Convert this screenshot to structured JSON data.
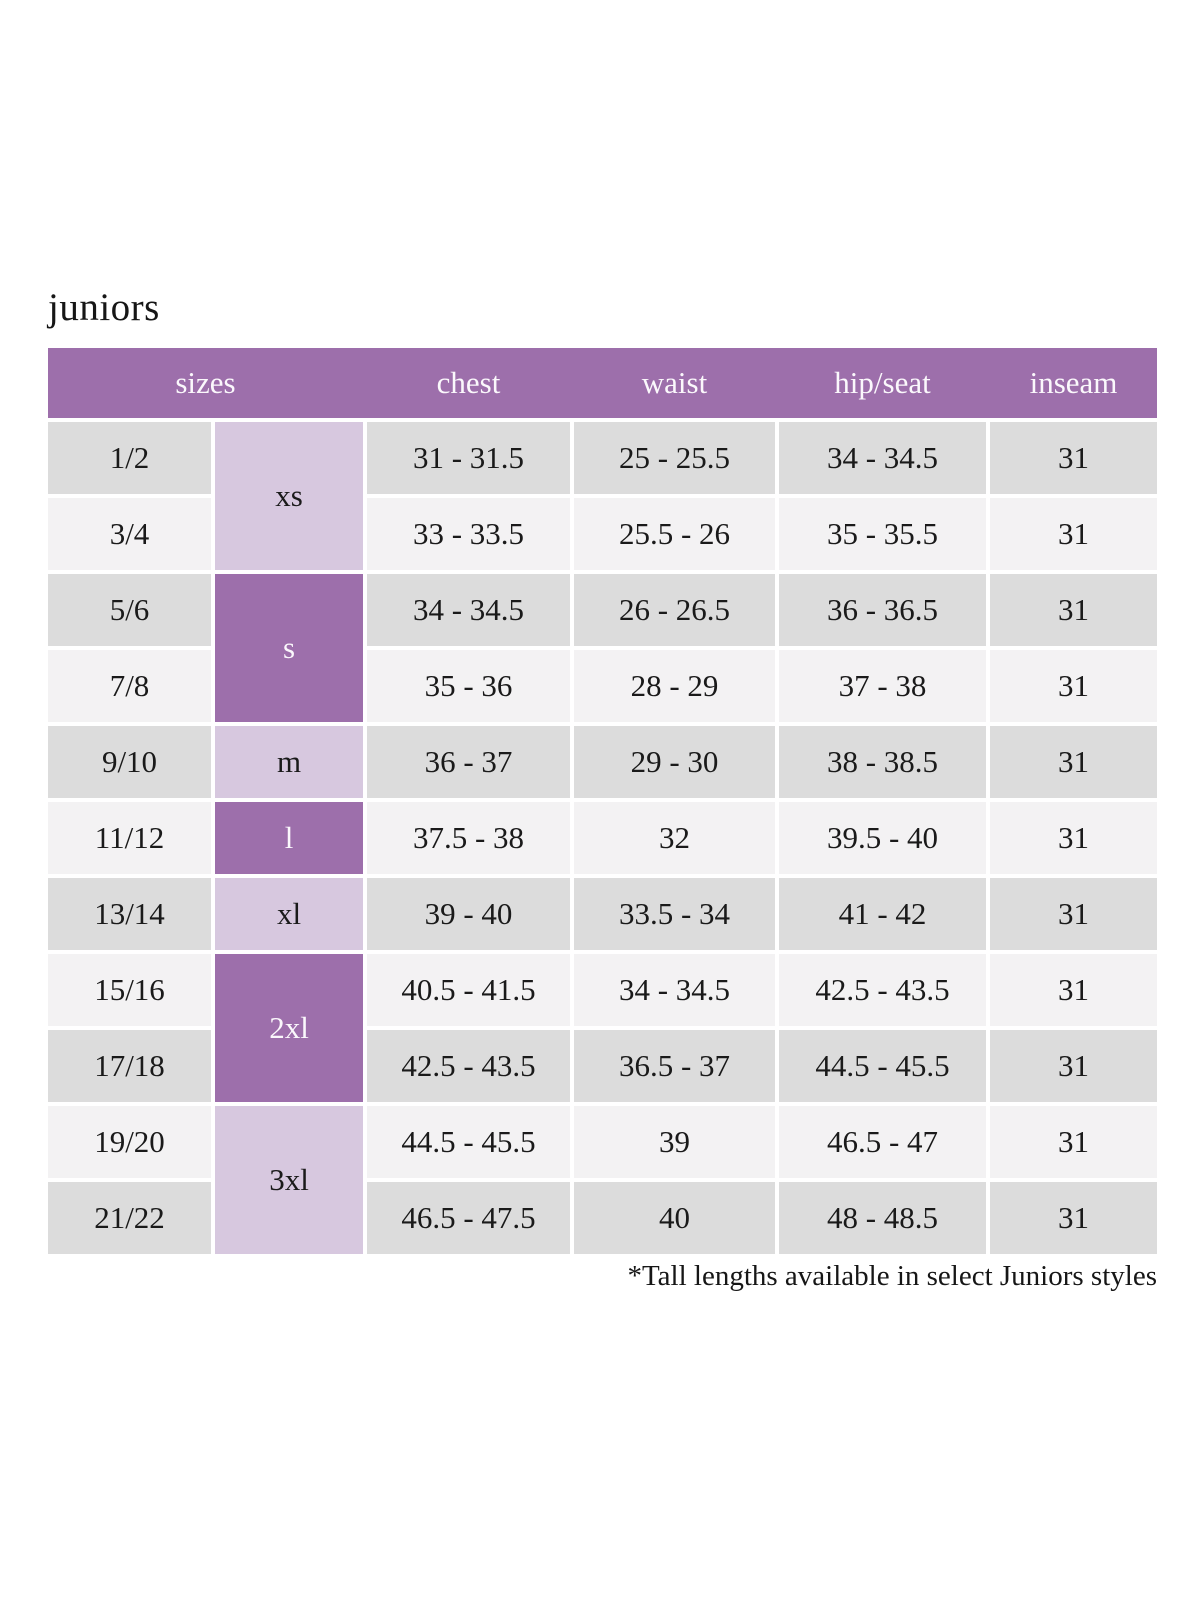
{
  "page": {
    "title": "juniors",
    "footnote": "*Tall lengths available in select Juniors styles"
  },
  "colors": {
    "header_bg": "#9d6fab",
    "header_text": "#fbf8fc",
    "size_dark_bg": "#9d6fab",
    "size_light_bg": "#d7c8df",
    "row_gray": "#dcdcdc",
    "row_light": "#f3f2f3",
    "cell_text": "#1a1a1a"
  },
  "table": {
    "columns": [
      "sizes",
      "chest",
      "waist",
      "hip/seat",
      "inseam"
    ],
    "size_groups": [
      {
        "label": "xs",
        "rows": 2,
        "variant": "light"
      },
      {
        "label": "s",
        "rows": 2,
        "variant": "dark"
      },
      {
        "label": "m",
        "rows": 1,
        "variant": "light"
      },
      {
        "label": "l",
        "rows": 1,
        "variant": "dark"
      },
      {
        "label": "xl",
        "rows": 1,
        "variant": "light"
      },
      {
        "label": "2xl",
        "rows": 2,
        "variant": "dark"
      },
      {
        "label": "3xl",
        "rows": 2,
        "variant": "light"
      }
    ],
    "rows": [
      {
        "size": "1/2",
        "chest": "31 - 31.5",
        "waist": "25 - 25.5",
        "hip_seat": "34 - 34.5",
        "inseam": "31"
      },
      {
        "size": "3/4",
        "chest": "33 - 33.5",
        "waist": "25.5 - 26",
        "hip_seat": "35 - 35.5",
        "inseam": "31"
      },
      {
        "size": "5/6",
        "chest": "34 - 34.5",
        "waist": "26 - 26.5",
        "hip_seat": "36 - 36.5",
        "inseam": "31"
      },
      {
        "size": "7/8",
        "chest": "35 - 36",
        "waist": "28 - 29",
        "hip_seat": "37 - 38",
        "inseam": "31"
      },
      {
        "size": "9/10",
        "chest": "36 - 37",
        "waist": "29 - 30",
        "hip_seat": "38 - 38.5",
        "inseam": "31"
      },
      {
        "size": "11/12",
        "chest": "37.5 - 38",
        "waist": "32",
        "hip_seat": "39.5 - 40",
        "inseam": "31"
      },
      {
        "size": "13/14",
        "chest": "39 - 40",
        "waist": "33.5 - 34",
        "hip_seat": "41 - 42",
        "inseam": "31"
      },
      {
        "size": "15/16",
        "chest": "40.5 - 41.5",
        "waist": "34 - 34.5",
        "hip_seat": "42.5 - 43.5",
        "inseam": "31"
      },
      {
        "size": "17/18",
        "chest": "42.5 - 43.5",
        "waist": "36.5 - 37",
        "hip_seat": "44.5 - 45.5",
        "inseam": "31"
      },
      {
        "size": "19/20",
        "chest": "44.5 - 45.5",
        "waist": "39",
        "hip_seat": "46.5 - 47",
        "inseam": "31"
      },
      {
        "size": "21/22",
        "chest": "46.5 - 47.5",
        "waist": "40",
        "hip_seat": "48 - 48.5",
        "inseam": "31"
      }
    ]
  }
}
